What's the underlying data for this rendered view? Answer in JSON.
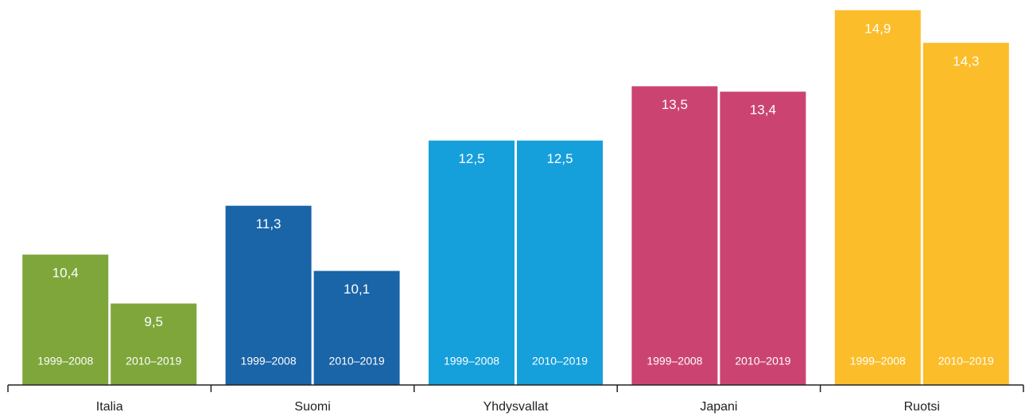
{
  "chart_data": {
    "type": "bar",
    "categories": [
      "Italia",
      "Suomi",
      "Yhdysvallat",
      "Japani",
      "Ruotsi"
    ],
    "colors": [
      "#7ea63a",
      "#1a64a8",
      "#159fdb",
      "#cb4471",
      "#fbbd2a"
    ],
    "series": [
      {
        "name": "1999–2008",
        "values": [
          10.4,
          11.3,
          12.5,
          13.5,
          14.9
        ],
        "value_labels": [
          "10,4",
          "11,3",
          "12,5",
          "13,5",
          "14,9"
        ]
      },
      {
        "name": "2010–2019",
        "values": [
          9.5,
          10.1,
          12.5,
          13.4,
          14.3
        ],
        "value_labels": [
          "9,5",
          "10,1",
          "12,5",
          "13,4",
          "14,3"
        ]
      }
    ],
    "ylim": [
      8,
      15
    ]
  }
}
